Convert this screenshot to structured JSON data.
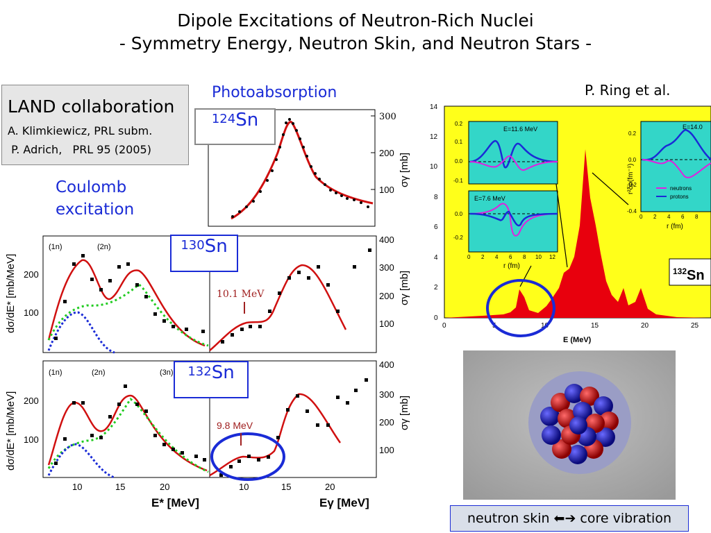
{
  "title": {
    "line1": "Dipole Excitations of Neutron-Rich Nuclei",
    "line2": "- Symmetry Energy, Neutron Skin, and Neutron Stars -"
  },
  "land": {
    "heading": "LAND collaboration",
    "ref1": "A. Klimkiewicz, PRL subm.",
    "ref2": " P. Adrich,   PRL 95 (2005)"
  },
  "labels": {
    "photoabsorption": "Photoabsorption",
    "coulomb_line1": "Coulomb",
    "coulomb_line2": "excitation",
    "ring": "P. Ring et al."
  },
  "isotopes": {
    "sn124": {
      "mass": "124",
      "el": "Sn"
    },
    "sn130": {
      "mass": "130",
      "el": "Sn"
    },
    "sn132": {
      "mass": "132",
      "el": "Sn"
    },
    "sn132_plot": {
      "mass": "132",
      "el": "Sn"
    }
  },
  "left_axes": {
    "y_label": "dσ/dE* [mb/MeV]",
    "y_ticks": [
      "100",
      "200"
    ],
    "x_label": "E* [MeV]",
    "x_ticks": [
      "10",
      "15",
      "20"
    ],
    "markers": [
      "(1n)",
      "(2n)",
      "(3n)"
    ]
  },
  "right_axes": {
    "y_label": "σγ [mb]",
    "top_ticks": [
      "100",
      "200",
      "300"
    ],
    "mid_ticks": [
      "100",
      "200",
      "300",
      "400"
    ],
    "x_label": "Eγ [MeV]",
    "x_ticks": [
      "10",
      "15",
      "20"
    ],
    "peak_130": "10.1 MeV",
    "peak_132": "9.8 MeV"
  },
  "strength_plot": {
    "x_label": "E (MeV)",
    "x_ticks": [
      "0",
      "5",
      "10",
      "15",
      "20",
      "25"
    ],
    "y_ticks": [
      "0",
      "2",
      "4",
      "6",
      "8",
      "10",
      "12",
      "14"
    ],
    "inset1": {
      "label": "E=11.6 MeV",
      "y_ticks": [
        "0.2",
        "0.1",
        "0.0",
        "-0.1"
      ]
    },
    "inset2": {
      "label": "E=7.6 MeV",
      "y_ticks": [
        "0.0",
        "-0.2"
      ],
      "x_ticks": [
        "0",
        "2",
        "4",
        "6",
        "8",
        "10",
        "12"
      ],
      "x_label": "r (fm)"
    },
    "inset3": {
      "label": "E=14.0",
      "y_ticks": [
        "0.2",
        "0.0",
        "-0.2",
        "-0.4"
      ],
      "x_ticks": [
        "0",
        "2",
        "4",
        "6",
        "8"
      ],
      "x_label": "r (fm)",
      "y_label": "r²δρ(fm⁻¹)",
      "legend": [
        "neutrons",
        "protons"
      ]
    }
  },
  "caption": {
    "left": "neutron skin",
    "arrow": "⬅➔",
    "right": "core vibration"
  },
  "colors": {
    "blue": "#1a2bd6",
    "red": "#e8000d",
    "yellow": "#ffff1a",
    "cyan": "#33d6c8",
    "magenta": "#e020e0"
  }
}
